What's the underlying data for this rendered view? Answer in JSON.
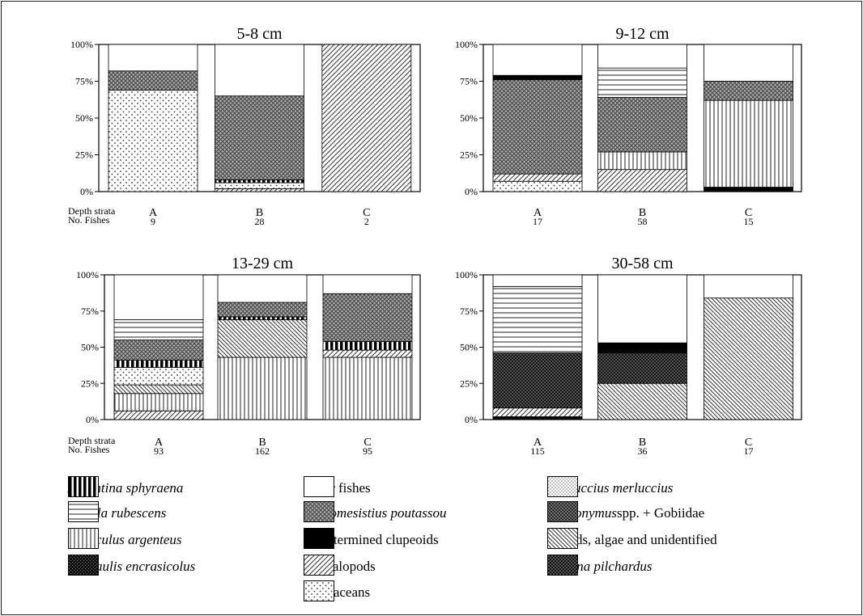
{
  "depth_strata_label": "Depth strata",
  "no_fishes_label": "No. Fishes",
  "legend": [
    {
      "key": "argentina",
      "label": "Argentina sphyraena",
      "italic": true,
      "pattern": "vlines_thick"
    },
    {
      "key": "cepola",
      "label": "Cepola rubescens",
      "italic": true,
      "pattern": "hlines"
    },
    {
      "key": "gadiculus",
      "label": "Gadiculus argenteus",
      "italic": true,
      "pattern": "vlines"
    },
    {
      "key": "engraulis",
      "label": "Engraulis encrasicolus",
      "italic": true,
      "pattern": "black_grid"
    },
    {
      "key": "other",
      "label": "Other fishes",
      "italic": false,
      "pattern": "white"
    },
    {
      "key": "micromesistius",
      "label": "Micromesistius poutassou",
      "italic": true,
      "pattern": "crosshatch"
    },
    {
      "key": "clupeoids",
      "label": "Undetermined clupeoids",
      "italic": false,
      "pattern": "black"
    },
    {
      "key": "cephalopods",
      "label": "Cephalopods",
      "italic": false,
      "pattern": "diag_up"
    },
    {
      "key": "crustaceans",
      "label": "Crustaceans",
      "italic": false,
      "pattern": "dots"
    },
    {
      "key": "merluccius",
      "label": "Merluccius merluccius",
      "italic": true,
      "pattern": "fine_dots"
    },
    {
      "key": "callionymus",
      "label": "Callionymus",
      "label_suffix": " spp. + Gobiidae",
      "italic": true,
      "pattern": "dense_cross"
    },
    {
      "key": "salpids",
      "label": "Salpids, algae and unidentified",
      "italic": false,
      "pattern": "diag_down"
    },
    {
      "key": "sardina",
      "label": "Sardina pilchardus",
      "italic": true,
      "pattern": "black_checker"
    }
  ],
  "chart_data": [
    {
      "type": "bar",
      "stacked": true,
      "title": "5-8 cm",
      "ylim": [
        0,
        100
      ],
      "yticks": [
        "0%",
        "25%",
        "50%",
        "75%",
        "100%"
      ],
      "categories": [
        "A",
        "B",
        "C"
      ],
      "n_fishes": [
        "9",
        "28",
        "2"
      ],
      "stacks": [
        [
          {
            "s": "crustaceans",
            "v": 69
          },
          {
            "s": "micromesistius",
            "v": 13
          },
          {
            "s": "other",
            "v": 18
          }
        ],
        [
          {
            "s": "cephalopods",
            "v": 2
          },
          {
            "s": "crustaceans",
            "v": 4
          },
          {
            "s": "argentina",
            "v": 2
          },
          {
            "s": "micromesistius",
            "v": 57
          },
          {
            "s": "other",
            "v": 35
          }
        ],
        [
          {
            "s": "cephalopods",
            "v": 100
          }
        ]
      ]
    },
    {
      "type": "bar",
      "stacked": true,
      "title": "9-12 cm",
      "ylim": [
        0,
        100
      ],
      "yticks": [
        "0%",
        "25%",
        "50%",
        "75%",
        "100%"
      ],
      "categories": [
        "A",
        "B",
        "C"
      ],
      "n_fishes": [
        "17",
        "58",
        "15"
      ],
      "stacks": [
        [
          {
            "s": "crustaceans",
            "v": 7
          },
          {
            "s": "cephalopods",
            "v": 5
          },
          {
            "s": "micromesistius",
            "v": 64
          },
          {
            "s": "clupeoids",
            "v": 3
          },
          {
            "s": "other",
            "v": 21
          }
        ],
        [
          {
            "s": "cephalopods",
            "v": 15
          },
          {
            "s": "gadiculus",
            "v": 12
          },
          {
            "s": "micromesistius",
            "v": 37
          },
          {
            "s": "cepola",
            "v": 20
          },
          {
            "s": "other",
            "v": 16
          }
        ],
        [
          {
            "s": "clupeoids",
            "v": 3
          },
          {
            "s": "gadiculus",
            "v": 59
          },
          {
            "s": "micromesistius",
            "v": 13
          },
          {
            "s": "other",
            "v": 25
          }
        ]
      ]
    },
    {
      "type": "bar",
      "stacked": true,
      "title": "13-29 cm",
      "ylim": [
        0,
        100
      ],
      "yticks": [
        "0%",
        "25%",
        "50%",
        "75%",
        "100%"
      ],
      "categories": [
        "A",
        "B",
        "C"
      ],
      "n_fishes": [
        "93",
        "162",
        "95"
      ],
      "stacks": [
        [
          {
            "s": "cephalopods",
            "v": 6
          },
          {
            "s": "gadiculus",
            "v": 12
          },
          {
            "s": "salpids",
            "v": 6
          },
          {
            "s": "crustaceans",
            "v": 12
          },
          {
            "s": "argentina",
            "v": 5
          },
          {
            "s": "micromesistius",
            "v": 14
          },
          {
            "s": "cepola",
            "v": 14
          },
          {
            "s": "other",
            "v": 31
          }
        ],
        [
          {
            "s": "gadiculus",
            "v": 43
          },
          {
            "s": "salpids",
            "v": 26
          },
          {
            "s": "argentina",
            "v": 2
          },
          {
            "s": "micromesistius",
            "v": 10
          },
          {
            "s": "other",
            "v": 19
          }
        ],
        [
          {
            "s": "gadiculus",
            "v": 43
          },
          {
            "s": "cephalopods",
            "v": 5
          },
          {
            "s": "argentina",
            "v": 6
          },
          {
            "s": "micromesistius",
            "v": 33
          },
          {
            "s": "other",
            "v": 13
          }
        ]
      ]
    },
    {
      "type": "bar",
      "stacked": true,
      "title": "30-58 cm",
      "ylim": [
        0,
        100
      ],
      "yticks": [
        "0%",
        "25%",
        "50%",
        "75%",
        "100%"
      ],
      "categories": [
        "A",
        "B",
        "C"
      ],
      "n_fishes": [
        "115",
        "36",
        "17"
      ],
      "stacks": [
        [
          {
            "s": "clupeoids",
            "v": 2
          },
          {
            "s": "cephalopods",
            "v": 6
          },
          {
            "s": "sardina",
            "v": 38
          },
          {
            "s": "cepola",
            "v": 46
          },
          {
            "s": "other",
            "v": 8
          }
        ],
        [
          {
            "s": "salpids",
            "v": 25
          },
          {
            "s": "sardina",
            "v": 21
          },
          {
            "s": "clupeoids",
            "v": 7
          },
          {
            "s": "other",
            "v": 47
          }
        ],
        [
          {
            "s": "salpids",
            "v": 84
          },
          {
            "s": "other",
            "v": 16
          }
        ]
      ]
    }
  ]
}
